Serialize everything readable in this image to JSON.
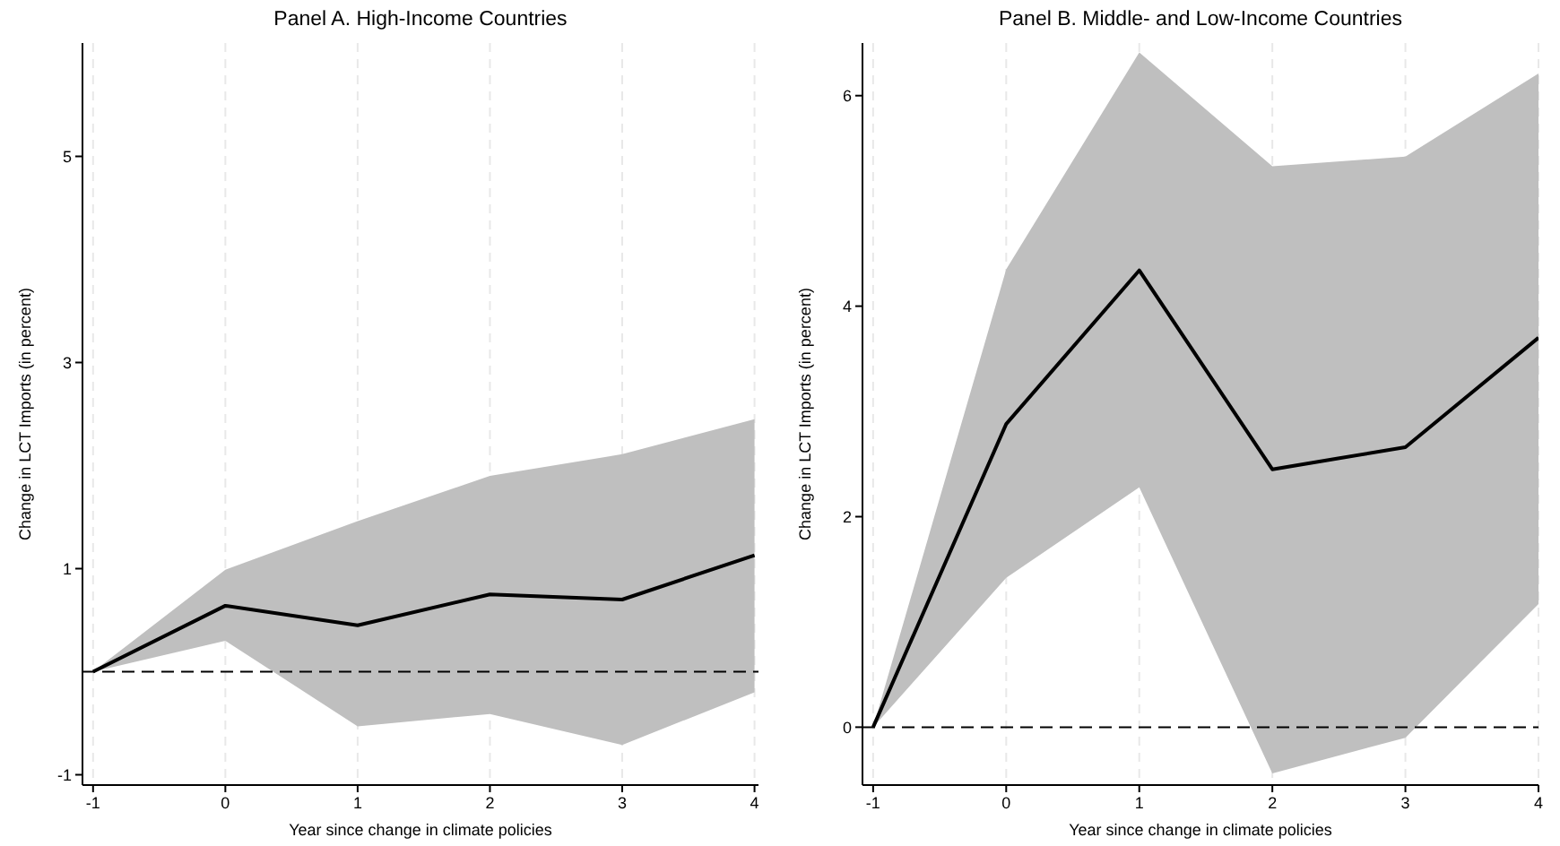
{
  "chart_data": [
    {
      "type": "line",
      "title": "Panel A. High-Income Countries",
      "xlabel": "Year since change in climate policies",
      "ylabel": "Change in LCT Imports (in percent)",
      "x": [
        -1,
        0,
        1,
        2,
        3,
        4
      ],
      "series": [
        {
          "color": "#000000",
          "values": [
            0,
            0.64,
            0.45,
            0.75,
            0.7,
            1.13
          ],
          "lower": [
            0,
            0.3,
            -0.53,
            -0.41,
            -0.71,
            -0.2
          ],
          "upper": [
            0,
            0.99,
            1.46,
            1.9,
            2.11,
            2.45
          ]
        }
      ],
      "xlim": [
        -1.08,
        4.03
      ],
      "ylim": [
        -1.1,
        6.1
      ],
      "xticks": [
        -1,
        0,
        1,
        2,
        3,
        4
      ],
      "yticks": [
        -1,
        1,
        3,
        5
      ],
      "grid": "x",
      "marker": "none",
      "line_style": "solid",
      "ref_lines": [
        {
          "axis": "y",
          "value": 0,
          "color": "#000000",
          "line_style": "dashed"
        }
      ]
    },
    {
      "type": "line",
      "title": "Panel B. Middle- and Low-Income Countries",
      "xlabel": "Year since change in climate policies",
      "ylabel": "Change in LCT Imports (in percent)",
      "x": [
        -1,
        0,
        1,
        2,
        3,
        4
      ],
      "series": [
        {
          "color": "#000000",
          "values": [
            0,
            2.88,
            4.34,
            2.45,
            2.66,
            3.7
          ],
          "lower": [
            0,
            1.42,
            2.28,
            -0.44,
            -0.1,
            1.17
          ],
          "upper": [
            0,
            4.35,
            6.41,
            5.33,
            5.42,
            6.21
          ]
        }
      ],
      "xlim": [
        -1.08,
        4.0
      ],
      "ylim": [
        -0.55,
        6.5
      ],
      "xticks": [
        -1,
        0,
        1,
        2,
        3,
        4
      ],
      "yticks": [
        0,
        2,
        4,
        6
      ],
      "grid": "x",
      "marker": "none",
      "line_style": "solid",
      "ref_lines": [
        {
          "axis": "y",
          "value": 0,
          "color": "#000000",
          "line_style": "dashed"
        }
      ]
    }
  ]
}
